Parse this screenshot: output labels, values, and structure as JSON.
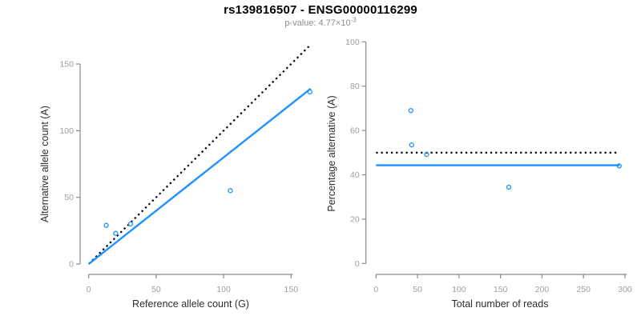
{
  "header": {
    "title": "rs139816507 - ENSG00000116299",
    "subtitle_prefix": "p-value: 4.77×10",
    "subtitle_exponent": "-3"
  },
  "colors": {
    "accent_blue": "#1E90FF",
    "line_black": "#000000",
    "axis_gray": "#8a8a8a",
    "tick_label_gray": "#9e9e9e",
    "axis_label_dark": "#2e2e2e",
    "subtitle_gray": "#8f8f8f"
  },
  "chart_data": [
    {
      "name": "ref-vs-alt-panel",
      "type": "scatter",
      "title": "",
      "xlabel": "Reference allele count (G)",
      "ylabel": "Alternative allele count (A)",
      "xticks": [
        0,
        50,
        100,
        150
      ],
      "yticks": [
        0,
        50,
        100,
        150
      ],
      "xlim": [
        -6.6,
        170.6
      ],
      "ylim": [
        -6.6,
        170.6
      ],
      "grid": false,
      "legend": "none",
      "marker": "open-circle",
      "points": [
        [
          13,
          29
        ],
        [
          20,
          23
        ],
        [
          31,
          30
        ],
        [
          105,
          55
        ],
        [
          164,
          129
        ]
      ],
      "lines": [
        {
          "name": "identity-line",
          "style": "dotted",
          "color_key": "line_black",
          "x1": 0,
          "y1": 0,
          "x2": 164,
          "y2": 164
        },
        {
          "name": "fit-line",
          "style": "solid",
          "color_key": "accent_blue",
          "x1": 0,
          "y1": 0,
          "x2": 164.5,
          "y2": 131.5
        }
      ]
    },
    {
      "name": "pct-vs-total-panel",
      "type": "scatter",
      "title": "",
      "xlabel": "Total number of reads",
      "ylabel": "Percentage alternative (A)",
      "xticks": [
        0,
        50,
        100,
        150,
        200,
        250,
        300
      ],
      "yticks": [
        0,
        20,
        40,
        60,
        80,
        100
      ],
      "xlim": [
        -11.7,
        304.7
      ],
      "ylim": [
        -4,
        104
      ],
      "grid": false,
      "legend": "none",
      "marker": "open-circle",
      "points": [
        [
          42,
          69
        ],
        [
          43,
          53.5
        ],
        [
          61,
          49.2
        ],
        [
          160,
          34.4
        ],
        [
          293,
          44
        ]
      ],
      "lines": [
        {
          "name": "expected-50pct-line",
          "style": "dotted",
          "color_key": "line_black",
          "x1": 0,
          "y1": 50,
          "x2": 290,
          "y2": 50
        },
        {
          "name": "fit-line",
          "style": "solid",
          "color_key": "accent_blue",
          "x1": 0,
          "y1": 44.3,
          "x2": 293.5,
          "y2": 44.3
        }
      ]
    }
  ]
}
